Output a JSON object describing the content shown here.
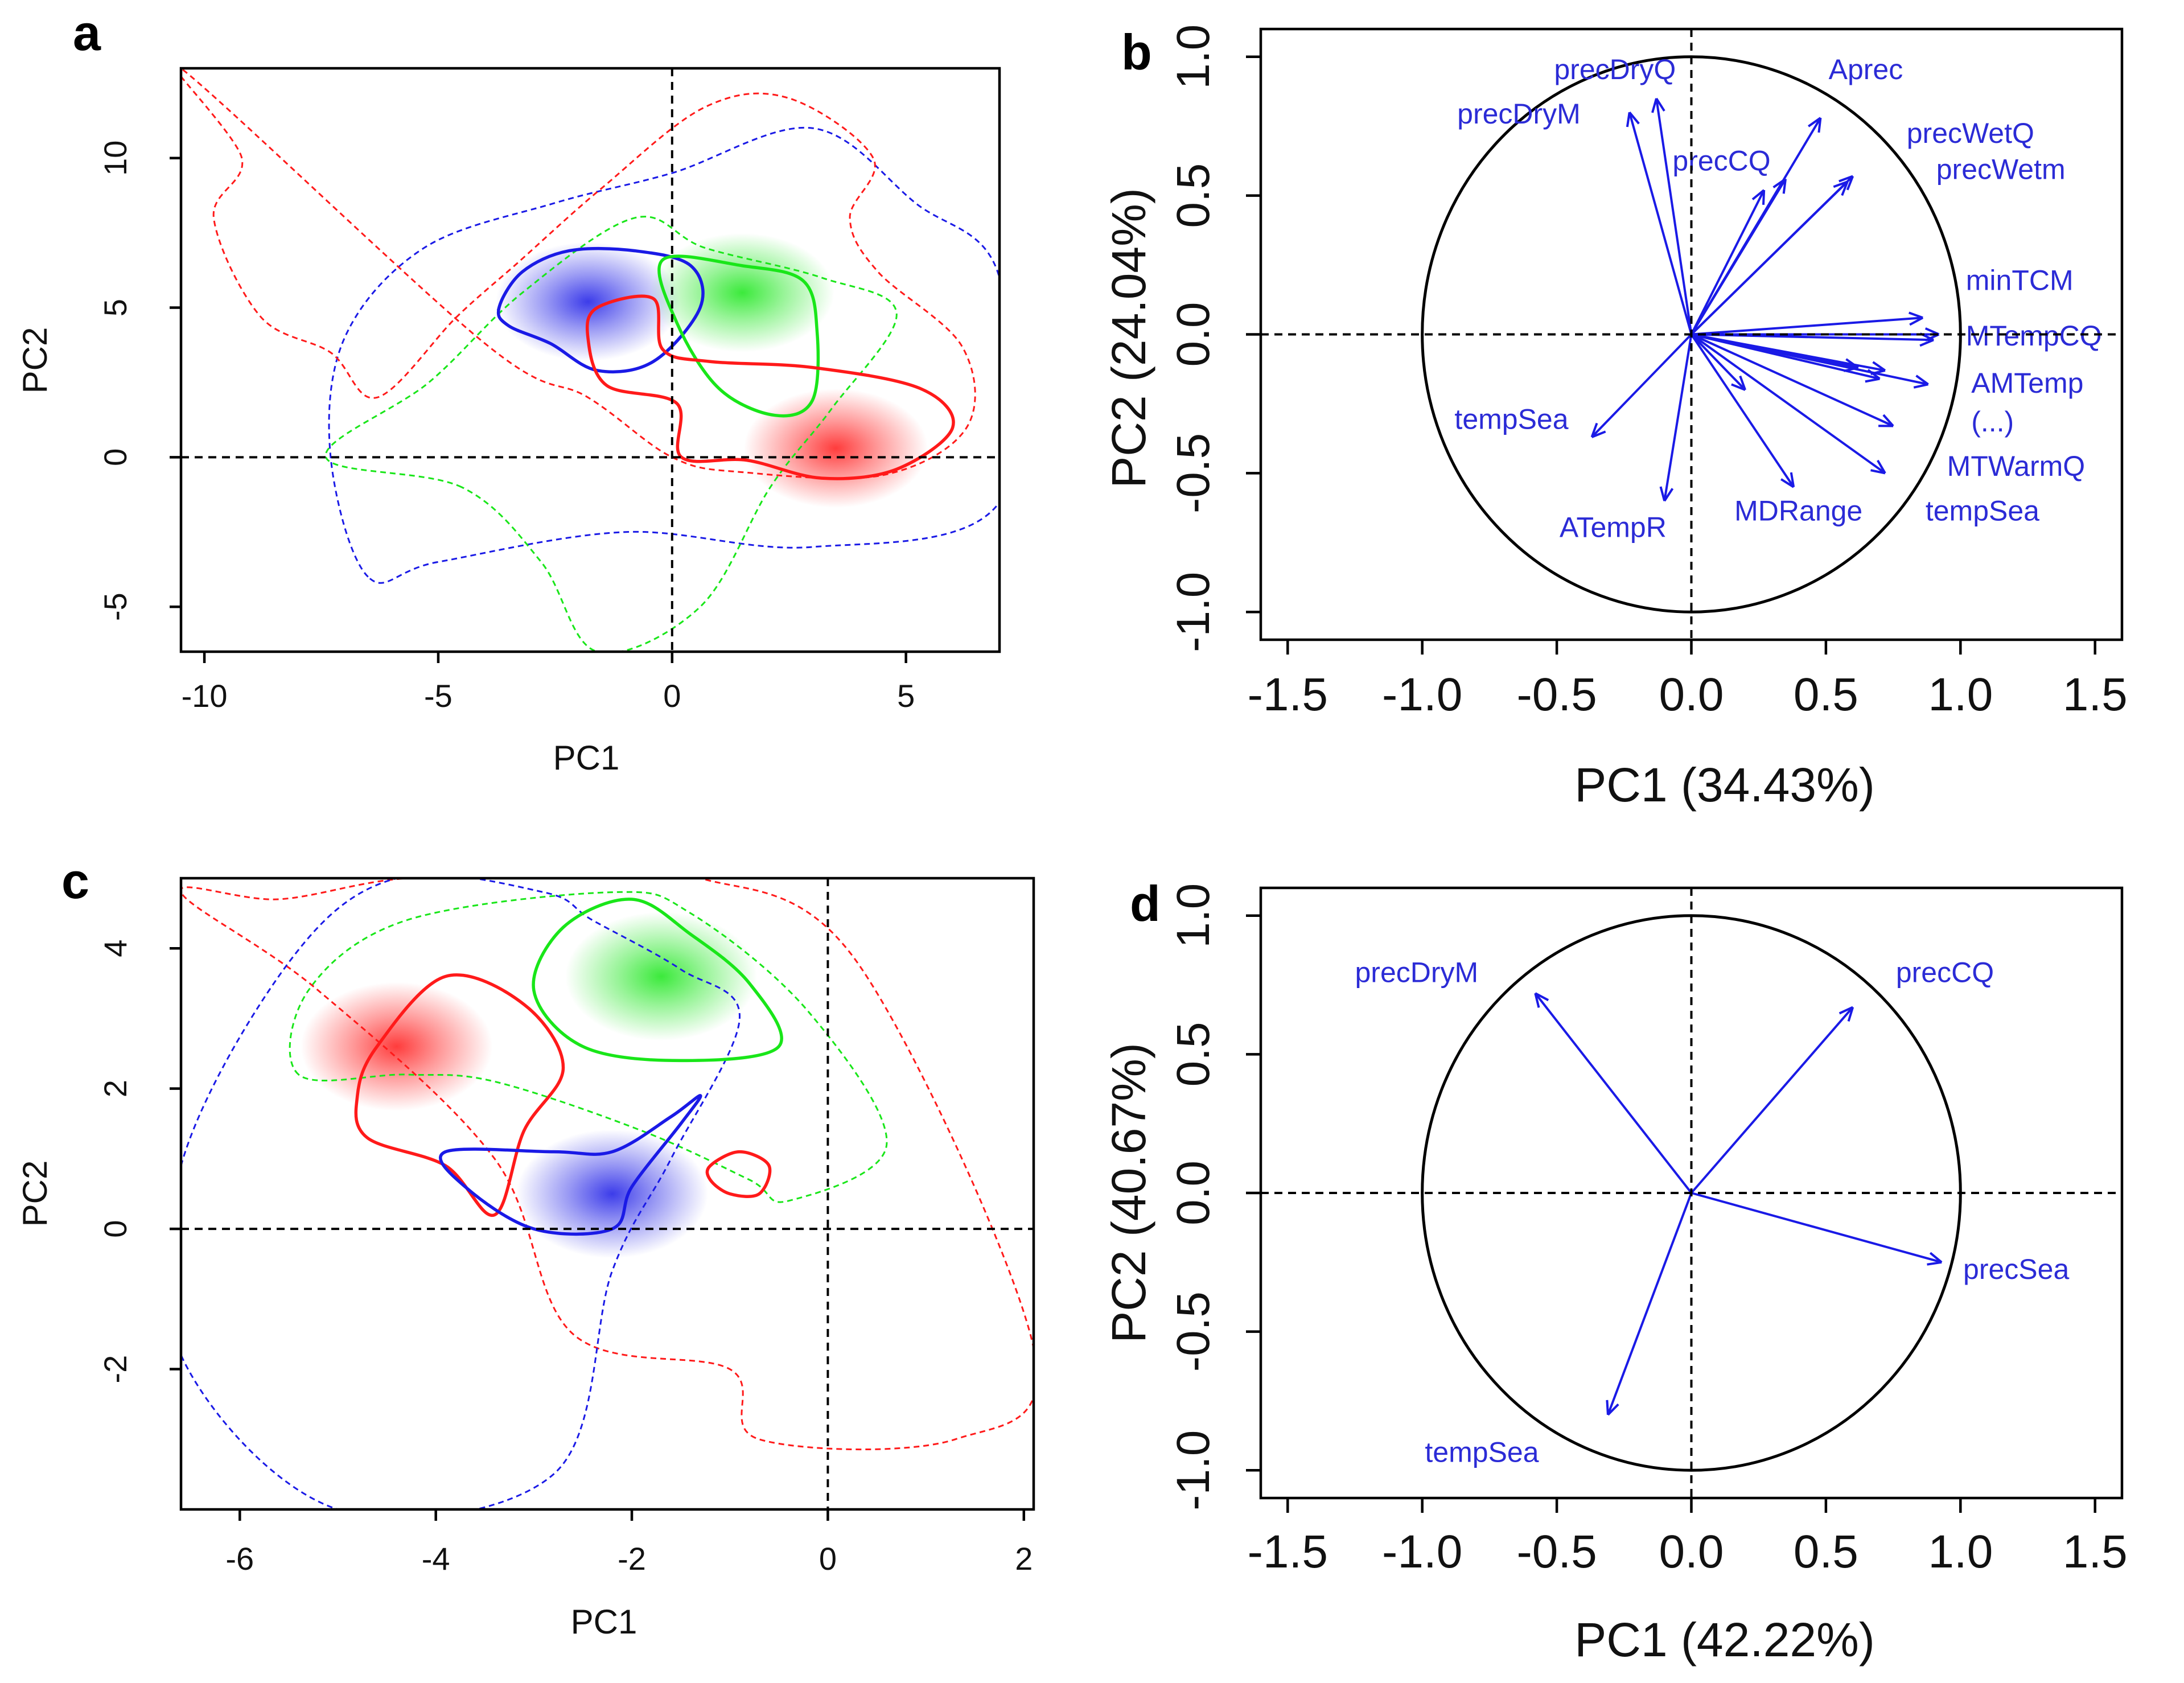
{
  "figure": {
    "panels": [
      "a",
      "b",
      "c",
      "d"
    ]
  },
  "colors": {
    "red": "#ff1a1a",
    "green": "#19e619",
    "blue": "#1a1ae6",
    "arrow": "#1a1ae6",
    "label": "#2b2bd6"
  },
  "chart_data": [
    {
      "id": "a",
      "type": "scatter",
      "title": "",
      "xlabel": "PC1",
      "ylabel": "PC2",
      "xlim": [
        -10.5,
        7
      ],
      "ylim": [
        -6.5,
        13
      ],
      "xticks": [
        -10,
        -5,
        0,
        5
      ],
      "xtick_labels": [
        "-10",
        "-5",
        "0",
        "5"
      ],
      "yticks": [
        -5,
        0,
        5,
        10
      ],
      "ytick_labels": [
        "-5",
        "0",
        "5",
        "10"
      ],
      "series": [
        {
          "name": "blue niche",
          "color": "blue",
          "centroid": [
            -1.8,
            5.2
          ],
          "core": [
            [
              -3.7,
              5
            ],
            [
              -3.2,
              6.2
            ],
            [
              -2.2,
              6.9
            ],
            [
              -0.8,
              6.9
            ],
            [
              0.4,
              6.4
            ],
            [
              0.6,
              5
            ],
            [
              -0.4,
              3.2
            ],
            [
              -1.6,
              2.9
            ],
            [
              -2.6,
              3.8
            ],
            [
              -3.5,
              4.4
            ]
          ],
          "extent": [
            [
              -6.5,
              -4
            ],
            [
              -7.3,
              0
            ],
            [
              -7,
              4
            ],
            [
              -5.3,
              7
            ],
            [
              -2.5,
              8.5
            ],
            [
              0,
              9.5
            ],
            [
              3,
              11
            ],
            [
              5.2,
              8.5
            ],
            [
              7,
              6
            ],
            [
              7,
              -1.5
            ],
            [
              3,
              -3
            ],
            [
              -1,
              -2.5
            ],
            [
              -5,
              -3.5
            ]
          ]
        },
        {
          "name": "green niche",
          "color": "green",
          "centroid": [
            1.5,
            5.5
          ],
          "core": [
            [
              -0.2,
              6.6
            ],
            [
              1.5,
              6.4
            ],
            [
              2.8,
              5.9
            ],
            [
              3.1,
              4.2
            ],
            [
              3,
              1.9
            ],
            [
              2.2,
              1.4
            ],
            [
              1,
              2.3
            ],
            [
              0.1,
              4.5
            ]
          ],
          "extent": [
            [
              -4.5,
              -1
            ],
            [
              -7.4,
              0
            ],
            [
              -5.2,
              2.5
            ],
            [
              -3.2,
              5.5
            ],
            [
              -0.8,
              8
            ],
            [
              0.7,
              7
            ],
            [
              3.2,
              6
            ],
            [
              4.8,
              4.8
            ],
            [
              3.4,
              1.6
            ],
            [
              2.1,
              -1
            ],
            [
              0.6,
              -5
            ],
            [
              -1.6,
              -6.5
            ],
            [
              -2.8,
              -3.5
            ]
          ]
        },
        {
          "name": "red niche",
          "color": "red",
          "centroid": [
            3.5,
            0.3
          ],
          "core": [
            [
              -1.6,
              5
            ],
            [
              -0.4,
              5.3
            ],
            [
              -0.2,
              3.6
            ],
            [
              0.8,
              3.2
            ],
            [
              3,
              3
            ],
            [
              5.3,
              2.3
            ],
            [
              6,
              1
            ],
            [
              4.8,
              -0.4
            ],
            [
              3.2,
              -0.7
            ],
            [
              1.6,
              -0.1
            ],
            [
              0.2,
              0
            ],
            [
              0.1,
              1.8
            ],
            [
              -1.4,
              2.4
            ],
            [
              -1.8,
              4
            ]
          ],
          "extent": [
            [
              -10.5,
              13
            ],
            [
              -9.2,
              10
            ],
            [
              -9.8,
              8
            ],
            [
              -8.8,
              4.7
            ],
            [
              -7.3,
              3.5
            ],
            [
              -6.3,
              2
            ],
            [
              -4.6,
              4.7
            ],
            [
              -3.3,
              6.5
            ],
            [
              -1.5,
              9
            ],
            [
              0.7,
              11.7
            ],
            [
              2.5,
              12
            ],
            [
              4.3,
              10
            ],
            [
              3.8,
              8
            ],
            [
              4.4,
              6.2
            ],
            [
              6.2,
              3.7
            ],
            [
              6.3,
              1
            ],
            [
              4.5,
              -0.6
            ],
            [
              1.5,
              -0.5
            ],
            [
              0,
              0
            ],
            [
              -1.8,
              2
            ],
            [
              -4,
              3.8
            ]
          ]
        }
      ]
    },
    {
      "id": "b",
      "type": "scatter",
      "title": "",
      "xlabel": "PC1 (34.43%)",
      "ylabel": "PC2 (24.04%)",
      "xlim": [
        -1.6,
        1.6
      ],
      "ylim": [
        -1.1,
        1.1
      ],
      "xticks": [
        -1.5,
        -1.0,
        -0.5,
        0.0,
        0.5,
        1.0,
        1.5
      ],
      "xtick_labels": [
        "-1.5",
        "-1.0",
        "-0.5",
        "0.0",
        "0.5",
        "1.0",
        "1.5"
      ],
      "yticks": [
        -1.0,
        -0.5,
        0.0,
        0.5,
        1.0
      ],
      "ytick_labels": [
        "-1.0",
        "-0.5",
        "0.0",
        "0.5",
        "1.0"
      ],
      "circle_radius": 1.0,
      "vectors": [
        {
          "name": "precDryQ",
          "x": -0.13,
          "y": 0.85
        },
        {
          "name": "precDryM",
          "x": -0.23,
          "y": 0.8
        },
        {
          "name": "precCQ",
          "x": 0.27,
          "y": 0.52
        },
        {
          "name": "Aprec",
          "x": 0.48,
          "y": 0.78
        },
        {
          "name": "precWetQ",
          "x": 0.6,
          "y": 0.57
        },
        {
          "name": "precWetm",
          "x": 0.58,
          "y": 0.55
        },
        {
          "name": "v7",
          "x": 0.35,
          "y": 0.56
        },
        {
          "name": "minTCM",
          "x": 0.86,
          "y": 0.06
        },
        {
          "name": "MTempCQ",
          "x": 0.9,
          "y": -0.02
        },
        {
          "name": "v10",
          "x": 0.92,
          "y": 0.0
        },
        {
          "name": "AMTemp",
          "x": 0.88,
          "y": -0.18
        },
        {
          "name": "v12",
          "x": 0.72,
          "y": -0.13
        },
        {
          "name": "v13",
          "x": 0.62,
          "y": -0.12
        },
        {
          "name": "v14",
          "x": 0.7,
          "y": -0.16
        },
        {
          "name": "MTWarmQ",
          "x": 0.75,
          "y": -0.33
        },
        {
          "name": "tempSea",
          "x": 0.72,
          "y": -0.5
        },
        {
          "name": "v17",
          "x": 0.2,
          "y": -0.2
        },
        {
          "name": "MDRange",
          "x": 0.38,
          "y": -0.55
        },
        {
          "name": "ATempR",
          "x": -0.1,
          "y": -0.6
        },
        {
          "name": "tempSea",
          "x": -0.37,
          "y": -0.37
        }
      ],
      "labels": [
        {
          "text": "precDryQ",
          "x": -0.51,
          "y": 0.92
        },
        {
          "text": "precDryM",
          "x": -0.87,
          "y": 0.76
        },
        {
          "text": "precCQ",
          "x": -0.07,
          "y": 0.59
        },
        {
          "text": "Aprec",
          "x": 0.51,
          "y": 0.92
        },
        {
          "text": "precWetQ",
          "x": 0.8,
          "y": 0.69
        },
        {
          "text": "precWetm",
          "x": 0.91,
          "y": 0.56
        },
        {
          "text": "minTCM",
          "x": 1.02,
          "y": 0.16
        },
        {
          "text": "MTempCQ",
          "x": 1.02,
          "y": -0.04
        },
        {
          "text": "AMTemp",
          "x": 1.04,
          "y": -0.21
        },
        {
          "text": "(...)",
          "x": 1.04,
          "y": -0.35
        },
        {
          "text": "MTWarmQ",
          "x": 0.95,
          "y": -0.51
        },
        {
          "text": "tempSea",
          "x": 0.87,
          "y": -0.67
        },
        {
          "text": "MDRange",
          "x": 0.16,
          "y": -0.67
        },
        {
          "text": "ATempR",
          "x": -0.49,
          "y": -0.73
        },
        {
          "text": "tempSea",
          "x": -0.88,
          "y": -0.34
        }
      ]
    },
    {
      "id": "c",
      "type": "scatter",
      "title": "",
      "xlabel": "PC1",
      "ylabel": "PC2",
      "xlim": [
        -6.6,
        2.1
      ],
      "ylim": [
        -4,
        5
      ],
      "xticks": [
        -6,
        -4,
        -2,
        0,
        2
      ],
      "xtick_labels": [
        "-6",
        "-4",
        "-2",
        "0",
        "2"
      ],
      "yticks": [
        -2,
        0,
        2,
        4
      ],
      "ytick_labels": [
        "-2",
        "0",
        "2",
        "4"
      ],
      "series": [
        {
          "name": "green niche",
          "color": "green",
          "centroid": [
            -1.7,
            3.6
          ],
          "core": [
            [
              -3,
              3.4
            ],
            [
              -2.7,
              4.3
            ],
            [
              -2,
              4.7
            ],
            [
              -1.4,
              4.2
            ],
            [
              -0.8,
              3.5
            ],
            [
              -0.5,
              2.6
            ],
            [
              -1.5,
              2.4
            ],
            [
              -2.5,
              2.6
            ]
          ],
          "extent": [
            [
              -5.4,
              2.2
            ],
            [
              -5.3,
              3.4
            ],
            [
              -4.3,
              4.4
            ],
            [
              -2.2,
              4.8
            ],
            [
              -1.4,
              4.5
            ],
            [
              -0.2,
              3.1
            ],
            [
              0.6,
              1.2
            ],
            [
              -0.4,
              0.4
            ],
            [
              -0.8,
              0.7
            ],
            [
              -1.9,
              1.4
            ],
            [
              -3.4,
              2.1
            ],
            [
              -4.3,
              2.2
            ]
          ]
        },
        {
          "name": "red niche",
          "color": "red",
          "centroid": [
            -4.4,
            2.6
          ],
          "core": [
            [
              -4.6,
              2.6
            ],
            [
              -3.9,
              3.6
            ],
            [
              -3.1,
              3.2
            ],
            [
              -2.7,
              2.3
            ],
            [
              -3.1,
              1.4
            ],
            [
              -3.4,
              0.2
            ],
            [
              -3.9,
              0.9
            ],
            [
              -4.7,
              1.3
            ],
            [
              -4.8,
              1.9
            ]
          ],
          "extent": [
            [
              -6.6,
              4.8
            ],
            [
              -5.6,
              4.7
            ],
            [
              -4.3,
              5
            ],
            [
              -2.6,
              5
            ],
            [
              -1.3,
              5
            ],
            [
              0.3,
              3.8
            ],
            [
              2.1,
              -1.7
            ],
            [
              1.3,
              -3
            ],
            [
              -0.7,
              -3
            ],
            [
              -1,
              -2
            ],
            [
              -2.6,
              -1.5
            ],
            [
              -3.4,
              1
            ],
            [
              -5.2,
              3.4
            ]
          ]
        },
        {
          "name": "red islet",
          "color": "red",
          "core": [
            [
              -1.2,
              0.9
            ],
            [
              -0.9,
              1.1
            ],
            [
              -0.6,
              0.9
            ],
            [
              -0.7,
              0.5
            ],
            [
              -1,
              0.5
            ],
            [
              -1.2,
              0.7
            ]
          ]
        },
        {
          "name": "blue niche",
          "color": "blue",
          "centroid": [
            -2.2,
            0.5
          ],
          "core": [
            [
              -3.9,
              1.1
            ],
            [
              -2.8,
              1.1
            ],
            [
              -2.2,
              1.1
            ],
            [
              -1.6,
              1.6
            ],
            [
              -1.3,
              1.9
            ],
            [
              -1.5,
              1.5
            ],
            [
              -2,
              0.6
            ],
            [
              -2.2,
              0
            ],
            [
              -3,
              0
            ],
            [
              -3.7,
              0.6
            ]
          ],
          "extent": [
            [
              -6.6,
              0.9
            ],
            [
              -5.5,
              3.8
            ],
            [
              -4.4,
              5
            ],
            [
              -2.9,
              4.8
            ],
            [
              -2.4,
              4.4
            ],
            [
              -1.5,
              3.7
            ],
            [
              -0.9,
              3
            ],
            [
              -1.6,
              1
            ],
            [
              -2.2,
              -0.6
            ],
            [
              -2.8,
              -3.5
            ],
            [
              -5,
              -4
            ],
            [
              -6.6,
              -1.8
            ]
          ]
        }
      ]
    },
    {
      "id": "d",
      "type": "scatter",
      "title": "",
      "xlabel": "PC1 (42.22%)",
      "ylabel": "PC2 (40.67%)",
      "xlim": [
        -1.6,
        1.6
      ],
      "ylim": [
        -1.1,
        1.1
      ],
      "xticks": [
        -1.5,
        -1.0,
        -0.5,
        0.0,
        0.5,
        1.0,
        1.5
      ],
      "xtick_labels": [
        "-1.5",
        "-1.0",
        "-0.5",
        "0.0",
        "0.5",
        "1.0",
        "1.5"
      ],
      "yticks": [
        -1.0,
        -0.5,
        0.0,
        0.5,
        1.0
      ],
      "ytick_labels": [
        "-1.0",
        "-0.5",
        "0.0",
        "0.5",
        "1.0"
      ],
      "circle_radius": 1.0,
      "vectors": [
        {
          "name": "precDryM",
          "x": -0.58,
          "y": 0.72
        },
        {
          "name": "precCQ",
          "x": 0.6,
          "y": 0.67
        },
        {
          "name": "precSea",
          "x": 0.93,
          "y": -0.25
        },
        {
          "name": "tempSea",
          "x": -0.31,
          "y": -0.8
        }
      ],
      "labels": [
        {
          "text": "precDryM",
          "x": -1.25,
          "y": 0.76
        },
        {
          "text": "precCQ",
          "x": 0.76,
          "y": 0.76
        },
        {
          "text": "precSea",
          "x": 1.01,
          "y": -0.31
        },
        {
          "text": "tempSea",
          "x": -0.99,
          "y": -0.97
        }
      ]
    }
  ]
}
